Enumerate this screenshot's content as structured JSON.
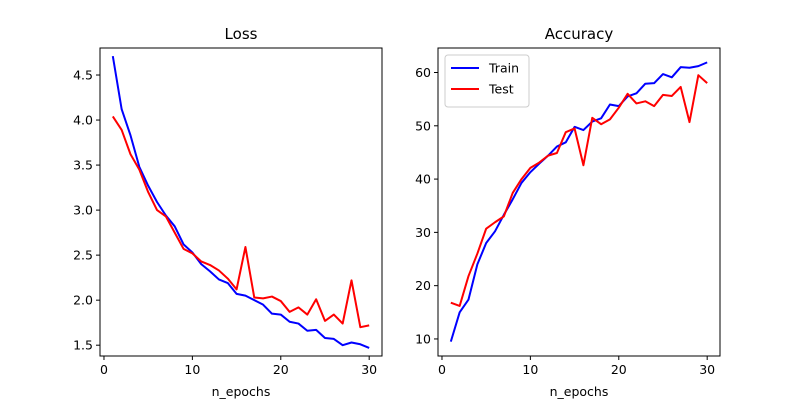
{
  "chart_data": [
    {
      "type": "line",
      "title": "Loss",
      "xlabel": "n_epochs",
      "ylabel": "",
      "xlim": [
        -0.45,
        31.45
      ],
      "ylim": [
        1.38,
        4.8
      ],
      "xticks": [
        0,
        10,
        20,
        30
      ],
      "yticks": [
        1.5,
        2.0,
        2.5,
        3.0,
        3.5,
        4.0,
        4.5
      ],
      "ytick_labels": [
        "1.5",
        "2.0",
        "2.5",
        "3.0",
        "3.5",
        "4.0",
        "4.5"
      ],
      "grid": false,
      "legend": null,
      "x": [
        1,
        2,
        3,
        4,
        5,
        6,
        7,
        8,
        9,
        10,
        11,
        12,
        13,
        14,
        15,
        16,
        17,
        18,
        19,
        20,
        21,
        22,
        23,
        24,
        25,
        26,
        27,
        28,
        29,
        30
      ],
      "series": [
        {
          "color": "#0000ff",
          "values": [
            4.71,
            4.12,
            3.83,
            3.48,
            3.27,
            3.09,
            2.94,
            2.82,
            2.62,
            2.53,
            2.4,
            2.32,
            2.23,
            2.19,
            2.07,
            2.05,
            2.0,
            1.95,
            1.85,
            1.84,
            1.76,
            1.74,
            1.66,
            1.67,
            1.58,
            1.57,
            1.5,
            1.53,
            1.51,
            1.47
          ]
        },
        {
          "color": "#ff0000",
          "values": [
            4.04,
            3.89,
            3.62,
            3.45,
            3.2,
            3.0,
            2.93,
            2.75,
            2.57,
            2.52,
            2.43,
            2.39,
            2.33,
            2.24,
            2.12,
            2.59,
            2.03,
            2.02,
            2.04,
            1.99,
            1.87,
            1.92,
            1.84,
            2.01,
            1.77,
            1.84,
            1.74,
            2.22,
            1.7,
            1.72
          ]
        }
      ]
    },
    {
      "type": "line",
      "title": "Accuracy",
      "xlabel": "n_epochs",
      "ylabel": "",
      "xlim": [
        -0.45,
        31.45
      ],
      "ylim": [
        6.8,
        64.6
      ],
      "xticks": [
        0,
        10,
        20,
        30
      ],
      "yticks": [
        10,
        20,
        30,
        40,
        50,
        60
      ],
      "ytick_labels": [
        "10",
        "20",
        "30",
        "40",
        "50",
        "60"
      ],
      "grid": false,
      "legend": "top-left",
      "x": [
        1,
        2,
        3,
        4,
        5,
        6,
        7,
        8,
        9,
        10,
        11,
        12,
        13,
        14,
        15,
        16,
        17,
        18,
        19,
        20,
        21,
        22,
        23,
        24,
        25,
        26,
        27,
        28,
        29,
        30
      ],
      "series": [
        {
          "name": "Train",
          "color": "#0000ff",
          "values": [
            9.5,
            15.0,
            17.4,
            24.0,
            28.0,
            30.2,
            33.3,
            36.2,
            39.3,
            41.3,
            42.9,
            44.4,
            46.1,
            46.9,
            49.8,
            49.2,
            50.8,
            51.4,
            54.0,
            53.7,
            55.5,
            56.1,
            57.9,
            58.0,
            59.7,
            59.1,
            61.0,
            60.9,
            61.2,
            61.9
          ]
        },
        {
          "name": "Test",
          "color": "#ff0000",
          "values": [
            16.8,
            16.2,
            21.8,
            26.0,
            30.7,
            31.9,
            33.0,
            37.4,
            40.0,
            42.1,
            43.1,
            44.4,
            44.9,
            48.8,
            49.5,
            42.6,
            51.5,
            50.3,
            51.2,
            53.4,
            56.0,
            54.2,
            54.6,
            53.7,
            55.8,
            55.6,
            57.3,
            50.7,
            59.5,
            58.0
          ]
        }
      ]
    }
  ]
}
